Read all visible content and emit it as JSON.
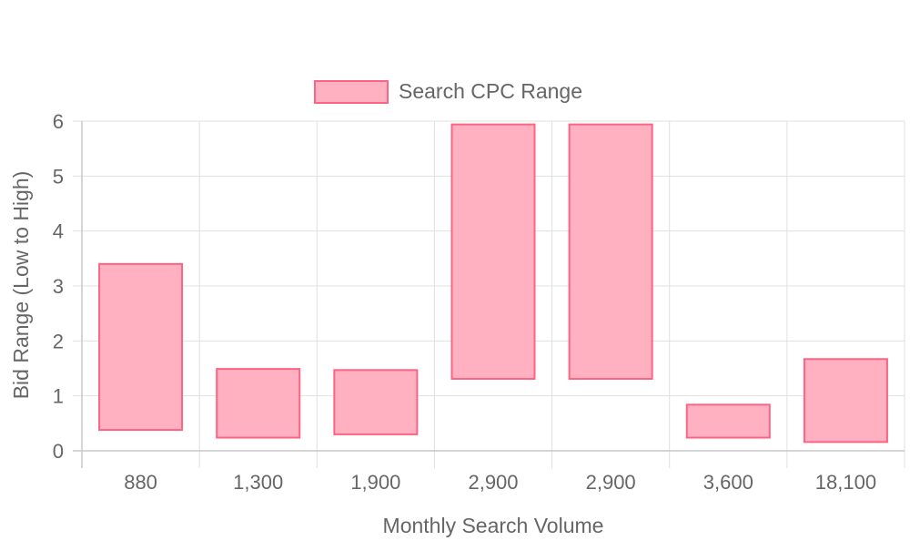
{
  "chart_data": {
    "type": "bar",
    "title": "",
    "xlabel": "Monthly Search Volume",
    "ylabel": "Bid Range (Low to High)",
    "categories": [
      "880",
      "1,300",
      "1,900",
      "2,900",
      "2,900",
      "3,600",
      "18,100"
    ],
    "series": [
      {
        "name": "Search CPC Range",
        "ranges": [
          [
            0.38,
            3.4
          ],
          [
            0.24,
            1.49
          ],
          [
            0.3,
            1.47
          ],
          [
            1.31,
            5.94
          ],
          [
            1.31,
            5.94
          ],
          [
            0.24,
            0.84
          ],
          [
            0.16,
            1.67
          ]
        ]
      }
    ],
    "ylim": [
      0,
      6
    ],
    "yticks": [
      "0",
      "1",
      "2",
      "3",
      "4",
      "5",
      "6"
    ],
    "grid": true,
    "legend_position": "top",
    "colors": {
      "bar_fill": "#ffb1c1",
      "bar_stroke": "#ff6384",
      "grid": "#e0e0e0",
      "axis": "#c8c8c8",
      "text": "#666666"
    }
  }
}
